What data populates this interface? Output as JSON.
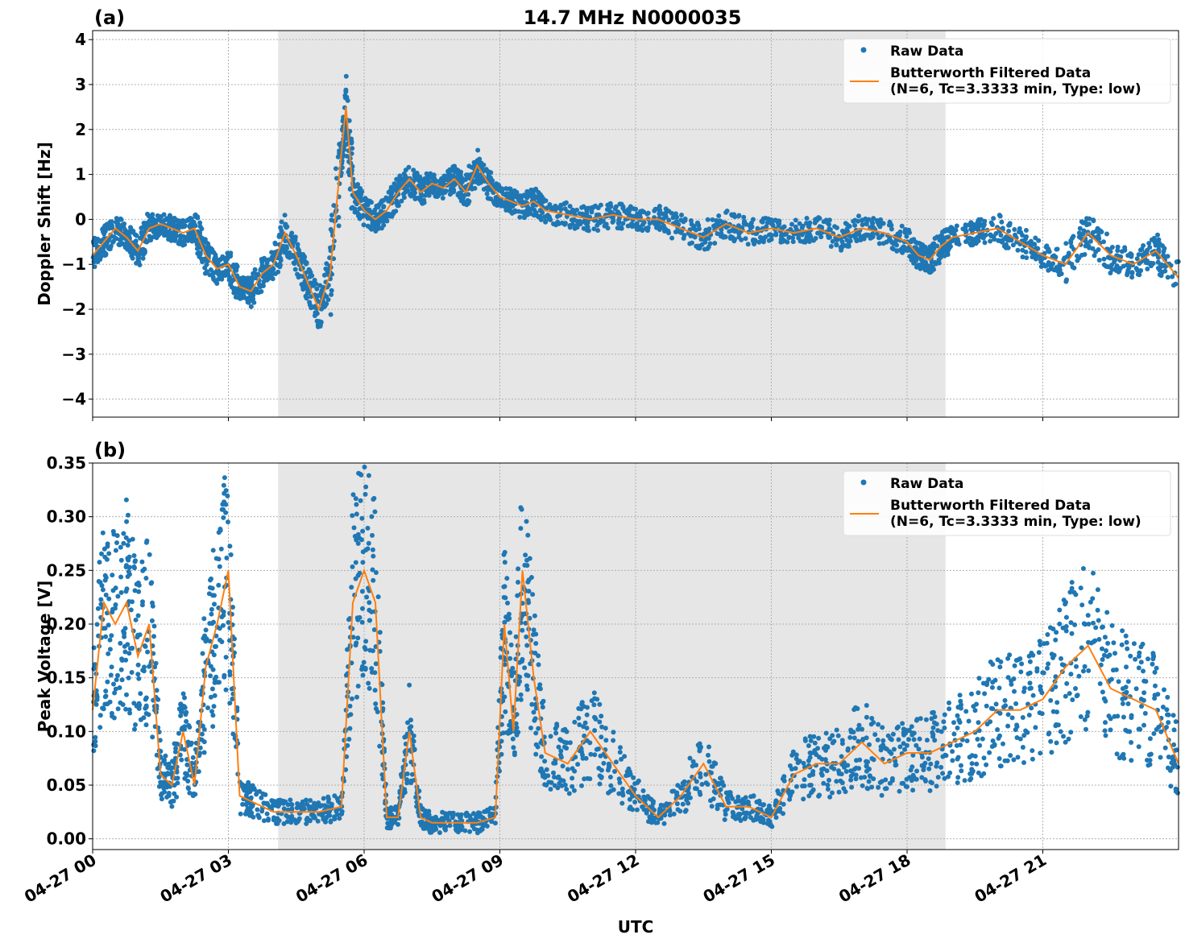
{
  "figure": {
    "title": "14.7 MHz N0000035",
    "xlabel": "UTC",
    "xticks": [
      "04-27 00",
      "04-27 03",
      "04-27 06",
      "04-27 09",
      "04-27 12",
      "04-27 15",
      "04-27 18",
      "04-27 21"
    ],
    "shaded_interval_hours": [
      4.1,
      18.85
    ],
    "colors": {
      "raw": "#1f77b4",
      "filtered": "#ff7f0e",
      "shade": "#e6e6e6",
      "grid": "#b0b0b0"
    }
  },
  "chart_data": [
    {
      "type": "line",
      "panel_label": "(a)",
      "ylabel": "Doppler Shift [Hz]",
      "xlim": [
        0,
        24
      ],
      "ylim": [
        -4.4,
        4.2
      ],
      "yticks": [
        -4,
        -3,
        -2,
        -1,
        0,
        1,
        2,
        3,
        4
      ],
      "ytick_labels": [
        "−4",
        "−3",
        "−2",
        "−1",
        "0",
        "1",
        "2",
        "3",
        "4"
      ],
      "legend": {
        "placement": "top-right",
        "raw_label": "Raw Data",
        "filtered_label_1": "Butterworth Filtered Data",
        "filtered_label_2": "(N=6, Tc=3.3333 min, Type: low)"
      },
      "series": [
        {
          "name": "Raw Data",
          "style": "points",
          "x": [
            0,
            0.25,
            0.5,
            0.75,
            1,
            1.25,
            1.5,
            1.75,
            2,
            2.25,
            2.5,
            2.75,
            3,
            3.25,
            3.5,
            3.75,
            4,
            4.25,
            4.5,
            4.75,
            5,
            5.25,
            5.5,
            5.6,
            5.75,
            6,
            6.25,
            6.5,
            6.75,
            7,
            7.25,
            7.5,
            7.75,
            8,
            8.25,
            8.5,
            8.75,
            9,
            9.25,
            9.5,
            9.75,
            10,
            10.5,
            11,
            11.5,
            12,
            12.5,
            13,
            13.5,
            14,
            14.5,
            15,
            15.5,
            16,
            16.5,
            17,
            17.5,
            18,
            18.25,
            18.5,
            18.75,
            19,
            19.5,
            20,
            20.5,
            21,
            21.5,
            22,
            22.5,
            23,
            23.5,
            24
          ],
          "y": [
            -0.8,
            -0.5,
            -0.2,
            -0.4,
            -0.7,
            -0.2,
            -0.1,
            -0.2,
            -0.3,
            -0.2,
            -0.8,
            -1.1,
            -1.0,
            -1.5,
            -1.6,
            -1.2,
            -1.0,
            -0.3,
            -0.8,
            -1.4,
            -2.0,
            -1.2,
            1.5,
            2.5,
            0.6,
            0.2,
            0.0,
            0.2,
            0.6,
            0.9,
            0.6,
            0.8,
            0.7,
            0.9,
            0.6,
            1.2,
            0.8,
            0.5,
            0.4,
            0.3,
            0.4,
            0.2,
            0.1,
            0.0,
            0.1,
            0.0,
            0.0,
            -0.2,
            -0.4,
            -0.1,
            -0.3,
            -0.2,
            -0.3,
            -0.2,
            -0.4,
            -0.2,
            -0.3,
            -0.5,
            -0.8,
            -0.9,
            -0.6,
            -0.4,
            -0.3,
            -0.2,
            -0.5,
            -0.8,
            -1.0,
            -0.3,
            -0.8,
            -1.0,
            -0.7,
            -1.3
          ]
        },
        {
          "name": "Butterworth Filtered Data",
          "style": "line",
          "x": [
            0,
            0.25,
            0.5,
            0.75,
            1,
            1.25,
            1.5,
            1.75,
            2,
            2.25,
            2.5,
            2.75,
            3,
            3.25,
            3.5,
            3.75,
            4,
            4.25,
            4.5,
            4.75,
            5,
            5.25,
            5.5,
            5.6,
            5.75,
            6,
            6.25,
            6.5,
            6.75,
            7,
            7.25,
            7.5,
            7.75,
            8,
            8.25,
            8.5,
            8.75,
            9,
            9.25,
            9.5,
            9.75,
            10,
            10.5,
            11,
            11.5,
            12,
            12.5,
            13,
            13.5,
            14,
            14.5,
            15,
            15.5,
            16,
            16.5,
            17,
            17.5,
            18,
            18.25,
            18.5,
            18.75,
            19,
            19.5,
            20,
            20.5,
            21,
            21.5,
            22,
            22.5,
            23,
            23.5,
            24
          ],
          "y": [
            -0.8,
            -0.5,
            -0.2,
            -0.4,
            -0.7,
            -0.2,
            -0.1,
            -0.2,
            -0.3,
            -0.2,
            -0.8,
            -1.1,
            -1.0,
            -1.5,
            -1.6,
            -1.2,
            -1.0,
            -0.3,
            -0.8,
            -1.4,
            -2.0,
            -1.2,
            1.5,
            2.5,
            0.6,
            0.2,
            0.0,
            0.2,
            0.6,
            0.9,
            0.6,
            0.8,
            0.7,
            0.9,
            0.6,
            1.2,
            0.8,
            0.5,
            0.4,
            0.3,
            0.4,
            0.2,
            0.1,
            0.0,
            0.1,
            0.0,
            0.0,
            -0.2,
            -0.4,
            -0.1,
            -0.3,
            -0.2,
            -0.3,
            -0.2,
            -0.4,
            -0.2,
            -0.3,
            -0.5,
            -0.8,
            -0.9,
            -0.6,
            -0.4,
            -0.3,
            -0.2,
            -0.5,
            -0.8,
            -1.0,
            -0.3,
            -0.8,
            -1.0,
            -0.7,
            -1.3
          ]
        }
      ]
    },
    {
      "type": "line",
      "panel_label": "(b)",
      "ylabel": "Peak Voltage [V]",
      "xlim": [
        0,
        24
      ],
      "ylim": [
        -0.01,
        0.35
      ],
      "yticks": [
        0.0,
        0.05,
        0.1,
        0.15,
        0.2,
        0.25,
        0.3,
        0.35
      ],
      "ytick_labels": [
        "0.00",
        "0.05",
        "0.10",
        "0.15",
        "0.20",
        "0.25",
        "0.30",
        "0.35"
      ],
      "legend": {
        "placement": "top-right",
        "raw_label": "Raw Data",
        "filtered_label_1": "Butterworth Filtered Data",
        "filtered_label_2": "(N=6, Tc=3.3333 min, Type: low)"
      },
      "series": [
        {
          "name": "Raw Data",
          "style": "points",
          "x": [
            0,
            0.25,
            0.5,
            0.75,
            1,
            1.25,
            1.5,
            1.75,
            2,
            2.25,
            2.5,
            2.75,
            3,
            3.25,
            3.5,
            4,
            4.5,
            5,
            5.5,
            5.75,
            6,
            6.25,
            6.5,
            6.75,
            7,
            7.25,
            7.5,
            8,
            8.5,
            8.9,
            9.1,
            9.3,
            9.5,
            9.75,
            10,
            10.5,
            11,
            11.5,
            12,
            12.5,
            13,
            13.5,
            14,
            14.5,
            15,
            15.5,
            16,
            16.5,
            17,
            17.5,
            18,
            18.5,
            19,
            19.5,
            20,
            20.5,
            21,
            21.5,
            22,
            22.5,
            23,
            23.5,
            24
          ],
          "y": [
            0.12,
            0.22,
            0.2,
            0.22,
            0.17,
            0.2,
            0.06,
            0.05,
            0.1,
            0.05,
            0.16,
            0.2,
            0.25,
            0.04,
            0.035,
            0.025,
            0.025,
            0.025,
            0.03,
            0.22,
            0.25,
            0.22,
            0.02,
            0.02,
            0.1,
            0.02,
            0.015,
            0.015,
            0.015,
            0.02,
            0.2,
            0.1,
            0.25,
            0.15,
            0.08,
            0.07,
            0.1,
            0.07,
            0.04,
            0.02,
            0.04,
            0.07,
            0.03,
            0.03,
            0.02,
            0.06,
            0.07,
            0.07,
            0.09,
            0.07,
            0.08,
            0.08,
            0.09,
            0.1,
            0.12,
            0.12,
            0.13,
            0.16,
            0.18,
            0.14,
            0.13,
            0.12,
            0.07
          ]
        },
        {
          "name": "Butterworth Filtered Data",
          "style": "line",
          "x": [
            0,
            0.25,
            0.5,
            0.75,
            1,
            1.25,
            1.5,
            1.75,
            2,
            2.25,
            2.5,
            2.75,
            3,
            3.25,
            3.5,
            4,
            4.5,
            5,
            5.5,
            5.75,
            6,
            6.25,
            6.5,
            6.75,
            7,
            7.25,
            7.5,
            8,
            8.5,
            8.9,
            9.1,
            9.3,
            9.5,
            9.75,
            10,
            10.5,
            11,
            11.5,
            12,
            12.5,
            13,
            13.5,
            14,
            14.5,
            15,
            15.5,
            16,
            16.5,
            17,
            17.5,
            18,
            18.5,
            19,
            19.5,
            20,
            20.5,
            21,
            21.5,
            22,
            22.5,
            23,
            23.5,
            24
          ],
          "y": [
            0.12,
            0.22,
            0.2,
            0.22,
            0.17,
            0.2,
            0.06,
            0.05,
            0.1,
            0.05,
            0.16,
            0.2,
            0.25,
            0.04,
            0.035,
            0.025,
            0.025,
            0.025,
            0.03,
            0.22,
            0.25,
            0.22,
            0.02,
            0.02,
            0.1,
            0.02,
            0.015,
            0.015,
            0.015,
            0.02,
            0.2,
            0.1,
            0.25,
            0.15,
            0.08,
            0.07,
            0.1,
            0.07,
            0.04,
            0.02,
            0.04,
            0.07,
            0.03,
            0.03,
            0.02,
            0.06,
            0.07,
            0.07,
            0.09,
            0.07,
            0.08,
            0.08,
            0.09,
            0.1,
            0.12,
            0.12,
            0.13,
            0.16,
            0.18,
            0.14,
            0.13,
            0.12,
            0.07
          ]
        }
      ]
    }
  ]
}
